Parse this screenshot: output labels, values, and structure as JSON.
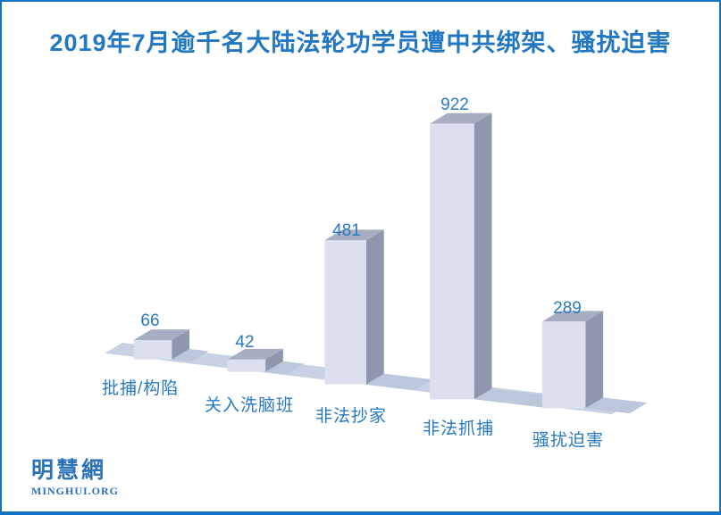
{
  "title": "2019年7月逾千名大陆法轮功学员遭中共绑架、骚扰迫害",
  "chart_data": {
    "type": "bar",
    "style": "3d-oblique",
    "title": "2019年7月逾千名大陆法轮功学员遭中共绑架、骚扰迫害",
    "categories": [
      "批捕/构陷",
      "关入洗脑班",
      "非法抄家",
      "非法抓捕",
      "骚扰迫害"
    ],
    "values": [
      66,
      42,
      481,
      922,
      289
    ],
    "value_labels_shown": true,
    "axes_shown": false,
    "gridlines_shown": false,
    "legend": "none",
    "colors": {
      "bar_front": "#dce0ee",
      "bar_top": "#a7aec2",
      "bar_side": "#8f97ac",
      "floor": "#c8d2e4",
      "shadow": "#bcc7dc",
      "label_text": "#2879c2",
      "title_text": "#2277c2",
      "frame_border": "#1473c4",
      "logo_blue": "#2c72b8"
    }
  },
  "footer": {
    "logo_cjk": "明慧網",
    "logo_latin": "MINGHUI.ORG"
  }
}
